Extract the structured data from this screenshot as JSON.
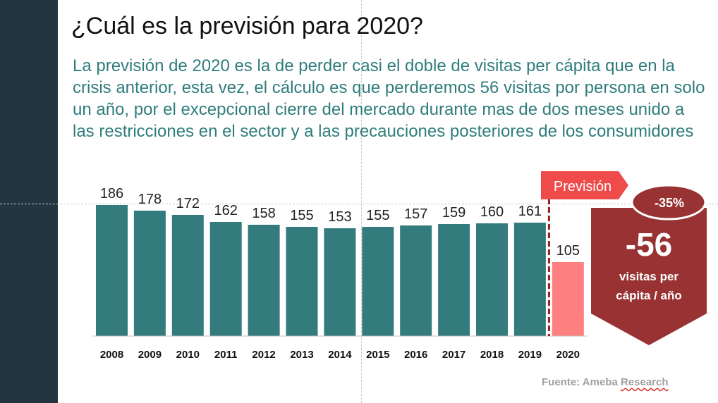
{
  "title": "¿Cuál es la previsión para 2020?",
  "subtitle": "La previsión de 2020 es la de perder casi el doble de visitas per cápita que en la crisis anterior, esta vez, el cálculo es que perderemos 56 visitas por persona en solo un año, por el excepcional cierre del mercado durante mas de dos meses unido a las restricciones en el sector y a las precauciones posteriores de los consumidores",
  "source": {
    "prefix": "Fuente: Ameba ",
    "underlined": "Research"
  },
  "colors": {
    "sidebar": "#213640",
    "bar": "#337b7c",
    "forecast_bar": "#ff8080",
    "forecast_tag": "#ef4b4b",
    "callout": "#993333",
    "subtitle": "#2f7d7c"
  },
  "chart_data": {
    "type": "bar",
    "title": "",
    "categories": [
      "2008",
      "2009",
      "2010",
      "2011",
      "2012",
      "2013",
      "2014",
      "2015",
      "2016",
      "2017",
      "2018",
      "2019",
      "2020"
    ],
    "values": [
      186,
      178,
      172,
      162,
      158,
      155,
      153,
      155,
      157,
      159,
      160,
      161,
      105
    ],
    "forecast_category": "2020",
    "forecast_label": "Previsión",
    "ylim": [
      0,
      200
    ],
    "xlabel": "",
    "ylabel": "",
    "annotations": {
      "change_percent": "-35%",
      "change_value": "-56",
      "change_unit_line1": "visitas per",
      "change_unit_line2": "cápita / año"
    }
  }
}
